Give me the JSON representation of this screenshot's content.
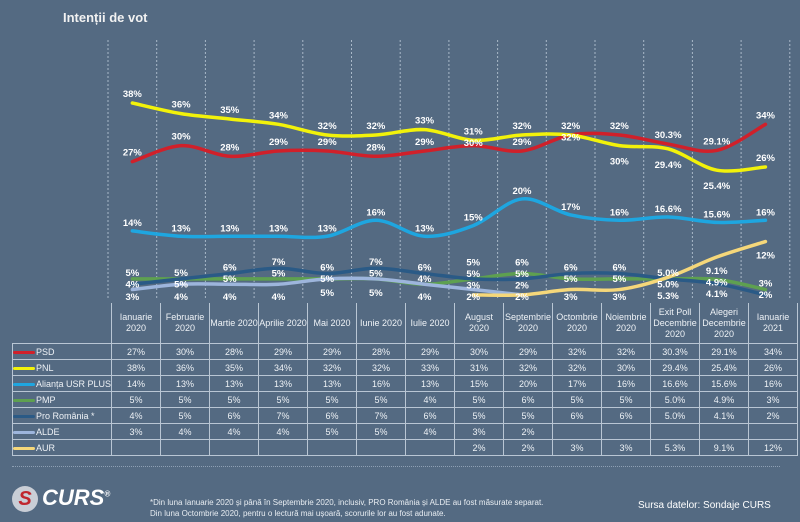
{
  "chart_data": {
    "type": "line",
    "title": "Intenții de vot",
    "categories": [
      "Ianuarie 2020",
      "Februarie 2020",
      "Martie 2020",
      "Aprilie 2020",
      "Mai 2020",
      "Iunie 2020",
      "Iulie 2020",
      "August 2020",
      "Septembrie 2020",
      "Octombrie 2020",
      "Noiembrie 2020",
      "Exit Poll Decembrie 2020",
      "Alegeri Decembrie 2020",
      "Ianuarie 2021"
    ],
    "value_suffix": "%",
    "grid": "vertical dashed",
    "legend": "table-below",
    "series": [
      {
        "name": "PSD",
        "color": "#d0202a",
        "values": [
          27,
          30,
          28,
          29,
          29,
          28,
          29,
          30,
          29,
          32,
          32,
          30.3,
          29.1,
          34
        ],
        "labels": [
          "27%",
          "30%",
          "28%",
          "29%",
          "29%",
          "28%",
          "29%",
          "30%",
          "29%",
          "32%",
          "32%",
          "30.3%",
          "29.1%",
          "34%"
        ]
      },
      {
        "name": "PNL",
        "color": "#f2f20a",
        "values": [
          38,
          36,
          35,
          34,
          32,
          32,
          33,
          31,
          32,
          32,
          30,
          29.4,
          25.4,
          26
        ],
        "labels": [
          "38%",
          "36%",
          "35%",
          "34%",
          "32%",
          "32%",
          "33%",
          "31%",
          "32%",
          "32%",
          "30%",
          "29.4%",
          "25.4%",
          "26%"
        ]
      },
      {
        "name": "Alianța USR PLUS",
        "color": "#1ea6e0",
        "values": [
          14,
          13,
          13,
          13,
          13,
          16,
          13,
          15,
          20,
          17,
          16,
          16.6,
          15.6,
          16
        ],
        "labels": [
          "14%",
          "13%",
          "13%",
          "13%",
          "13%",
          "16%",
          "13%",
          "15%",
          "20%",
          "17%",
          "16%",
          "16.6%",
          "15.6%",
          "16%"
        ]
      },
      {
        "name": "PMP",
        "color": "#5ea050",
        "values": [
          5,
          5,
          5,
          5,
          5,
          5,
          4,
          5,
          6,
          5,
          5,
          5.0,
          4.9,
          3
        ],
        "labels": [
          "5%",
          "5%",
          "5%",
          "5%",
          "5%",
          "5%",
          "4%",
          "5%",
          "6%",
          "5%",
          "5%",
          "5.0%",
          "4.9%",
          "3%"
        ]
      },
      {
        "name": "Pro România *",
        "color": "#2a5a86",
        "values": [
          4,
          5,
          6,
          7,
          6,
          7,
          6,
          5,
          5,
          6,
          6,
          5.0,
          4.1,
          2
        ],
        "labels": [
          "4%",
          "5%",
          "6%",
          "7%",
          "6%",
          "7%",
          "6%",
          "5%",
          "5%",
          "6%",
          "6%",
          "5.0%",
          "4.1%",
          "2%"
        ]
      },
      {
        "name": "ALDE",
        "color": "#9db5dc",
        "values": [
          3,
          4,
          4,
          4,
          5,
          5,
          4,
          3,
          2,
          null,
          null,
          null,
          null,
          null
        ],
        "labels": [
          "3%",
          "4%",
          "4%",
          "4%",
          "5%",
          "5%",
          "4%",
          "3%",
          "2%",
          "",
          "",
          "",
          "",
          ""
        ]
      },
      {
        "name": "AUR",
        "color": "#f5d77a",
        "values": [
          null,
          null,
          null,
          null,
          null,
          null,
          null,
          2,
          2,
          3,
          3,
          5.3,
          9.1,
          12
        ],
        "labels": [
          "",
          "",
          "",
          "",
          "",
          "",
          "",
          "2%",
          "2%",
          "3%",
          "3%",
          "5.3%",
          "9.1%",
          "12%"
        ]
      }
    ]
  },
  "footer": {
    "note_line1": "*Din luna Ianuarie 2020 și până în Septembrie 2020, inclusiv, PRO România și ALDE au fost măsurate separat.",
    "note_line2": "Din luna Octombrie 2020, pentru o lectură mai ușoară, scorurile lor au fost adunate.",
    "source": "Sursa datelor: Sondaje CURS",
    "logo_text": "CURS",
    "logo_mark": "®"
  }
}
